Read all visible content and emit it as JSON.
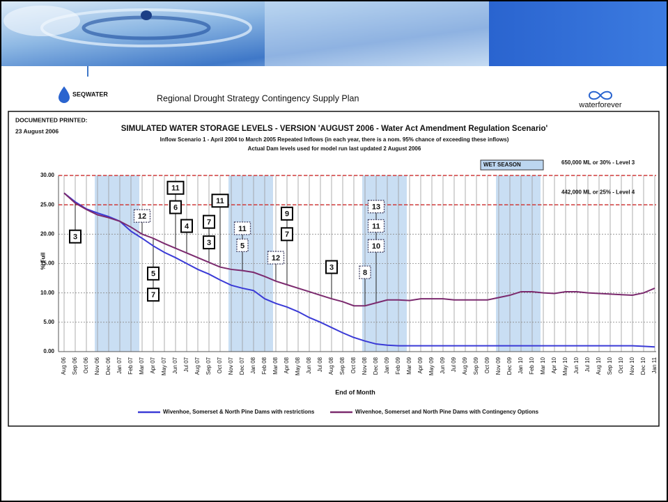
{
  "header": {
    "logo_left": "SEQWATER",
    "title": "Regional Drought Strategy Contingency Supply Plan",
    "logo_right": "waterforever"
  },
  "document": {
    "printed_label": "DOCUMENTED PRINTED:",
    "printed_date": "23 August 2006"
  },
  "chart_data": {
    "type": "line",
    "title": "SIMULATED WATER STORAGE LEVELS - VERSION 'AUGUST 2006 - Water Act Amendment Regulation Scenario'",
    "subtitle": "Inflow Scenario 1 - April 2004 to March 2005 Repeated Inflows (in each year, there is a nom. 95% chance of exceeding these inflows)",
    "subtitle2": "Actual Dam levels used for model run last updated 2 August 2006",
    "x_label": "End of Month",
    "y_label": "% Full",
    "categories": [
      "Aug 06",
      "Sep 06",
      "Oct 06",
      "Nov 06",
      "Dec 06",
      "Jan 07",
      "Feb 07",
      "Mar 07",
      "Apr 07",
      "May 07",
      "Jun 07",
      "Jul 07",
      "Aug 07",
      "Sep 07",
      "Oct 07",
      "Nov 07",
      "Dec 07",
      "Jan 08",
      "Feb 08",
      "Mar 08",
      "Apr 08",
      "May 08",
      "Jun 08",
      "Jul 08",
      "Aug 08",
      "Sep 08",
      "Oct 08",
      "Nov 08",
      "Dec 08",
      "Jan 09",
      "Feb 09",
      "Mar 09",
      "Apr 09",
      "May 09",
      "Jun 09",
      "Jul 09",
      "Aug 09",
      "Sep 09",
      "Oct 09",
      "Nov 09",
      "Dec 09",
      "Jan 10",
      "Feb 10",
      "Mar 10",
      "Apr 10",
      "May 10",
      "Jun 10",
      "Jul 10",
      "Aug 10",
      "Sep 10",
      "Oct 10",
      "Nov 10",
      "Dec 10",
      "Jan 11"
    ],
    "series": [
      {
        "name": "Wivenhoe, Somerset & North Pine Dams with restrictions",
        "color": "#3a3ad6",
        "values": [
          27,
          25.5,
          24.3,
          23.6,
          23,
          22.2,
          20.5,
          19.3,
          18,
          16.9,
          16,
          15,
          14,
          13.2,
          12.2,
          11.3,
          10.8,
          10.4,
          9,
          8.2,
          7.6,
          6.8,
          5.8,
          5,
          4.1,
          3.2,
          2.4,
          1.8,
          1.3,
          1.1,
          1,
          1,
          1,
          1,
          1,
          1,
          1,
          1,
          1,
          1,
          1,
          1,
          1,
          1,
          1,
          1,
          1,
          1,
          1,
          1,
          1,
          1,
          0.9,
          0.8
        ]
      },
      {
        "name": "Wivenhoe, Somerset and North Pine Dams with Contingency Options",
        "color": "#7b2a6e",
        "values": [
          27,
          25.3,
          24.2,
          23.3,
          22.8,
          22.2,
          21.2,
          20,
          19.3,
          18.4,
          17.6,
          16.8,
          16,
          15.2,
          14.4,
          14,
          13.8,
          13.5,
          12.8,
          12,
          11.4,
          10.8,
          10.2,
          9.6,
          9,
          8.5,
          7.8,
          7.8,
          8.3,
          8.8,
          8.8,
          8.7,
          9,
          9,
          9,
          8.8,
          8.8,
          8.8,
          8.8,
          9.2,
          9.6,
          10.2,
          10.2,
          10,
          9.9,
          10.2,
          10.2,
          10,
          9.9,
          9.8,
          9.7,
          9.6,
          10,
          10.8
        ]
      }
    ],
    "ylim": [
      0,
      30
    ],
    "yticks": [
      {
        "value": 30,
        "label": "30.00"
      },
      {
        "value": 25,
        "label": "25.00"
      },
      {
        "value": 20,
        "label": "20.00"
      },
      {
        "value": 15,
        "label": "15.00"
      },
      {
        "value": 10,
        "label": "10.00"
      },
      {
        "value": 5,
        "label": "5.00"
      },
      {
        "value": 0,
        "label": "0.00"
      }
    ],
    "grid": true,
    "reference_lines": [
      {
        "value": 30,
        "label": "650,000 ML or 30% - Level 3",
        "color": "#d23a3a"
      },
      {
        "value": 25,
        "label": "442,000 ML or 25% - Level 4",
        "color": "#d23a3a"
      }
    ],
    "shaded_label": "WET SEASON",
    "shaded_color": "#bcd6f0",
    "shaded_periods": [
      {
        "start": "Nov 06",
        "end": "Mar 07"
      },
      {
        "start": "Nov 07",
        "end": "Mar 08"
      },
      {
        "start": "Nov 08",
        "end": "Mar 09"
      },
      {
        "start": "Nov 09",
        "end": "Mar 10"
      }
    ],
    "annotations": [
      {
        "label": "3",
        "x": "Sep 06",
        "y": 19.6,
        "style": "solid"
      },
      {
        "label": "12",
        "x": "Mar 07",
        "y": 23.1,
        "style": "dotted"
      },
      {
        "label": "11",
        "x": "Jun 07",
        "y": 27.9,
        "style": "solid"
      },
      {
        "label": "6",
        "x": "Jun 07",
        "y": 24.6,
        "style": "solid"
      },
      {
        "label": "5",
        "x": "Apr 07",
        "y": 13.3,
        "style": "solid"
      },
      {
        "label": "7",
        "x": "Apr 07",
        "y": 9.7,
        "style": "solid"
      },
      {
        "label": "4",
        "x": "Jul 07",
        "y": 21.4,
        "style": "solid"
      },
      {
        "label": "7",
        "x": "Sep 07",
        "y": 22.1,
        "style": "solid"
      },
      {
        "label": "3",
        "x": "Sep 07",
        "y": 18.6,
        "style": "solid"
      },
      {
        "label": "11",
        "x": "Oct 07",
        "y": 25.7,
        "style": "solid"
      },
      {
        "label": "11",
        "x": "Dec 07",
        "y": 21.0,
        "style": "dotted"
      },
      {
        "label": "5",
        "x": "Dec 07",
        "y": 18.1,
        "style": "dotted"
      },
      {
        "label": "12",
        "x": "Mar 08",
        "y": 16.0,
        "style": "dotted"
      },
      {
        "label": "9",
        "x": "Apr 08",
        "y": 23.5,
        "style": "solid"
      },
      {
        "label": "7",
        "x": "Apr 08",
        "y": 20.0,
        "style": "solid"
      },
      {
        "label": "3",
        "x": "Aug 08",
        "y": 14.4,
        "style": "solid"
      },
      {
        "label": "8",
        "x": "Nov 08",
        "y": 13.5,
        "style": "dotted"
      },
      {
        "label": "13",
        "x": "Dec 08",
        "y": 24.7,
        "style": "dotted"
      },
      {
        "label": "11",
        "x": "Dec 08",
        "y": 21.4,
        "style": "dotted"
      },
      {
        "label": "10",
        "x": "Dec 08",
        "y": 18.0,
        "style": "dotted"
      }
    ]
  }
}
